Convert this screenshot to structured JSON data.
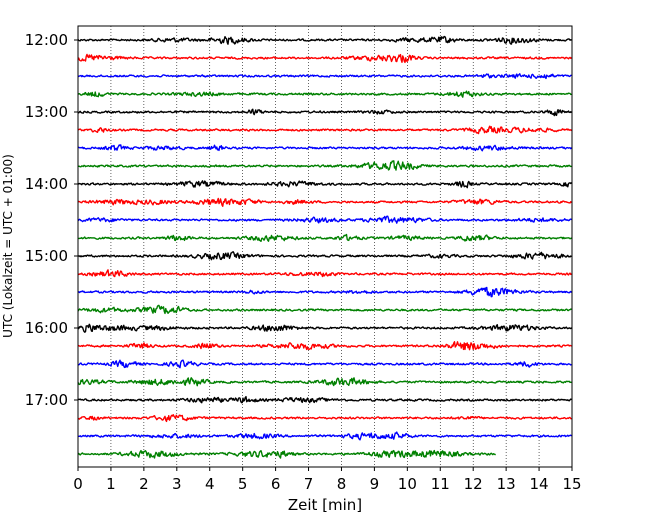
{
  "chart_data": {
    "type": "line",
    "title": "",
    "xlabel": "Zeit  [min]",
    "ylabel": "UTC (Lokalzeit = UTC + 01:00)",
    "xlim": [
      0,
      15
    ],
    "xticks": [
      0,
      1,
      2,
      3,
      4,
      5,
      6,
      7,
      8,
      9,
      10,
      11,
      12,
      13,
      14,
      15
    ],
    "yticks": [
      "12:00",
      "13:00",
      "14:00",
      "15:00",
      "16:00",
      "17:00"
    ],
    "trace_start": "12:00",
    "trace_interval_min": 15,
    "trace_count": 24,
    "last_trace_end_min": 12.7,
    "grid": "vertical dotted",
    "colors": [
      "#000000",
      "#ff0000",
      "#0000ff",
      "#008000"
    ]
  }
}
